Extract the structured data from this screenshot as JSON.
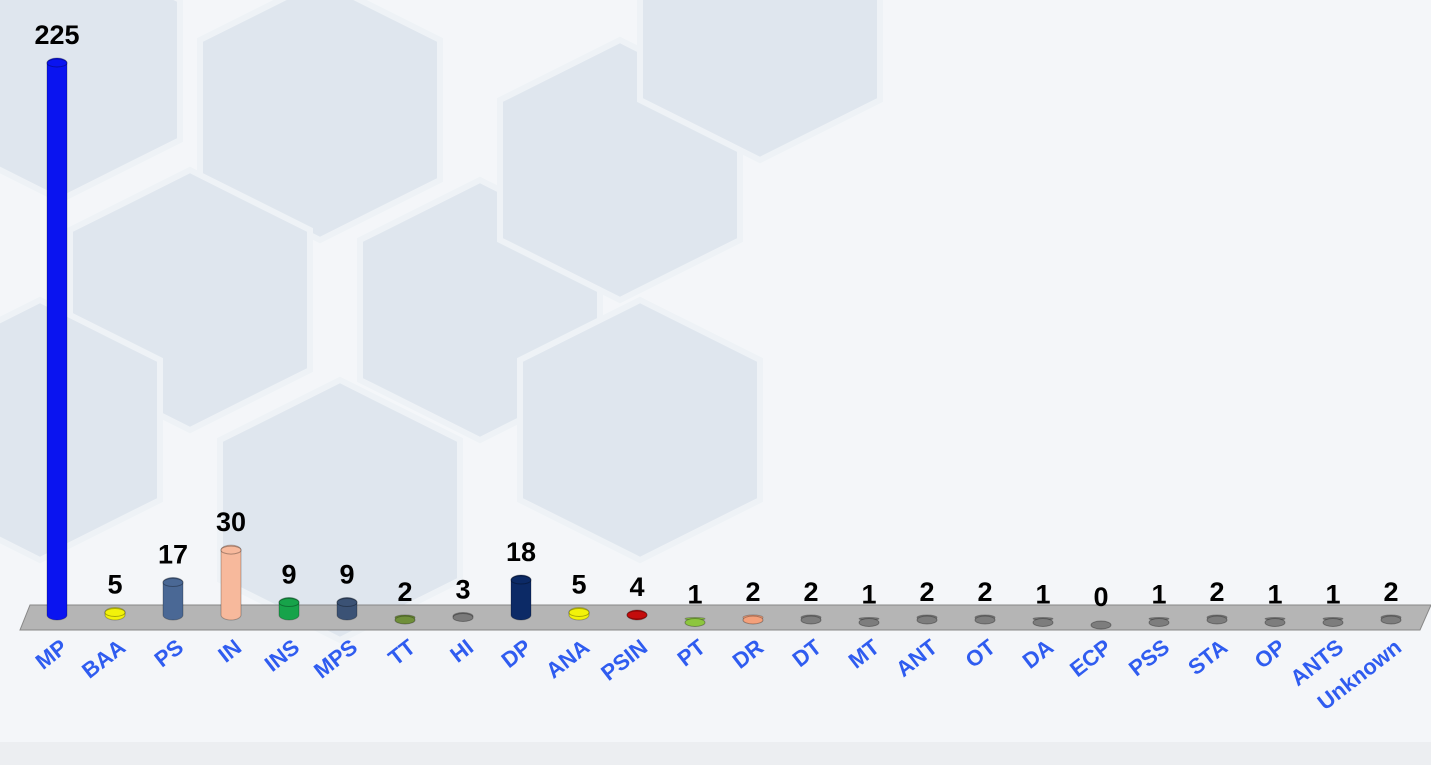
{
  "chart_data": {
    "type": "bar",
    "categories": [
      "MP",
      "BAA",
      "PS",
      "IN",
      "INS",
      "MPS",
      "TT",
      "HI",
      "DP",
      "ANA",
      "PSIN",
      "PT",
      "DR",
      "DT",
      "MT",
      "ANT",
      "OT",
      "DA",
      "ECP",
      "PSS",
      "STA",
      "OP",
      "ANTS",
      "Unknown"
    ],
    "values": [
      225,
      5,
      17,
      30,
      9,
      9,
      2,
      3,
      18,
      5,
      4,
      1,
      2,
      2,
      1,
      2,
      2,
      1,
      0,
      1,
      2,
      1,
      1,
      2
    ],
    "colors": [
      "#0a14f0",
      "#f2f20a",
      "#4a6895",
      "#f7b99c",
      "#17a34a",
      "#3b5275",
      "#6f8f3a",
      "#7a7a7a",
      "#0c2a66",
      "#f2f20a",
      "#c40c0c",
      "#8dc63f",
      "#f4a07a",
      "#7d7d7d",
      "#7d7d7d",
      "#7d7d7d",
      "#7d7d7d",
      "#7d7d7d",
      "#7d7d7d",
      "#7d7d7d",
      "#7d7d7d",
      "#7d7d7d",
      "#7d7d7d",
      "#7d7d7d"
    ]
  }
}
